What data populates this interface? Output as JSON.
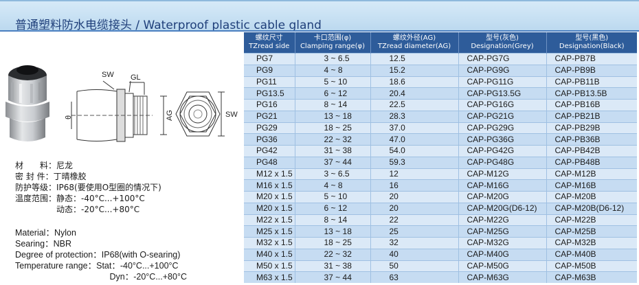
{
  "title": "普通塑料防水电缆接头 / Waterproof plastic cable gland",
  "diagram_labels": {
    "sw": "SW",
    "gl": "GL",
    "theta": "θ",
    "ag": "AG",
    "sw2": "SW"
  },
  "specs_cn": [
    "材　　料：尼龙",
    "密 封 件：丁晴橡胶",
    "防护等级：IP68(要使用O型圈的情况下)",
    "温度范围：静态：-40°C...+100°C",
    "　　　　　动态：-20°C...+80°C"
  ],
  "specs_en": [
    "Material：Nylon",
    "Searing：NBR",
    "Degree of protection：IP68(with O-searing)",
    "Temperature range：Stat：-40°C...+100°C",
    "　　　　　　　　　　　Dyn：-20°C...+80°C"
  ],
  "table": {
    "headers": [
      {
        "cn": "螺纹尺寸",
        "en": "TZread side"
      },
      {
        "cn": "卡口范围(φ)",
        "en": "Clamping range(φ)"
      },
      {
        "cn": "螺纹外径(AG)",
        "en": "TZread diameter(AG)"
      },
      {
        "cn": "型号(灰色)",
        "en": "Designation(Grey)"
      },
      {
        "cn": "型号(黑色)",
        "en": "Designation(Black)"
      }
    ],
    "rows": [
      [
        "PG7",
        "3 ~ 6.5",
        "12.5",
        "CAP-PG7G",
        "CAP-PB7B"
      ],
      [
        "PG9",
        "4 ~ 8",
        "15.2",
        "CAP-PG9G",
        "CAP-PB9B"
      ],
      [
        "PG11",
        "5 ~ 10",
        "18.6",
        "CAP-PG11G",
        "CAP-PB11B"
      ],
      [
        "PG13.5",
        "6 ~ 12",
        "20.4",
        "CAP-PG13.5G",
        "CAP-PB13.5B"
      ],
      [
        "PG16",
        "8 ~ 14",
        "22.5",
        "CAP-PG16G",
        "CAP-PB16B"
      ],
      [
        "PG21",
        "13 ~ 18",
        "28.3",
        "CAP-PG21G",
        "CAP-PB21B"
      ],
      [
        "PG29",
        "18 ~ 25",
        "37.0",
        "CAP-PG29G",
        "CAP-PB29B"
      ],
      [
        "PG36",
        "22 ~ 32",
        "47.0",
        "CAP-PG36G",
        "CAP-PB36B"
      ],
      [
        "PG42",
        "31 ~ 38",
        "54.0",
        "CAP-PG42G",
        "CAP-PB42B"
      ],
      [
        "PG48",
        "37 ~ 44",
        "59.3",
        "CAP-PG48G",
        "CAP-PB48B"
      ],
      [
        "M12 x 1.5",
        "3 ~ 6.5",
        "12",
        "CAP-M12G",
        "CAP-M12B"
      ],
      [
        "M16 x 1.5",
        "4 ~ 8",
        "16",
        "CAP-M16G",
        "CAP-M16B"
      ],
      [
        "M20 x 1.5",
        "5 ~ 10",
        "20",
        "CAP-M20G",
        "CAP-M20B"
      ],
      [
        "M20 x 1.5",
        "6 ~ 12",
        "20",
        "CAP-M20G(D6-12)",
        "CAP-M20B(D6-12)"
      ],
      [
        "M22 x 1.5",
        "8 ~ 14",
        "22",
        "CAP-M22G",
        "CAP-M22B"
      ],
      [
        "M25 x 1.5",
        "13 ~ 18",
        "25",
        "CAP-M25G",
        "CAP-M25B"
      ],
      [
        "M32 x 1.5",
        "18 ~ 25",
        "32",
        "CAP-M32G",
        "CAP-M32B"
      ],
      [
        "M40 x 1.5",
        "22 ~ 32",
        "40",
        "CAP-M40G",
        "CAP-M40B"
      ],
      [
        "M50 x 1.5",
        "31 ~ 38",
        "50",
        "CAP-M50G",
        "CAP-M50B"
      ],
      [
        "M63 x 1.5",
        "37 ~ 44",
        "63",
        "CAP-M63G",
        "CAP-M63B"
      ]
    ]
  }
}
